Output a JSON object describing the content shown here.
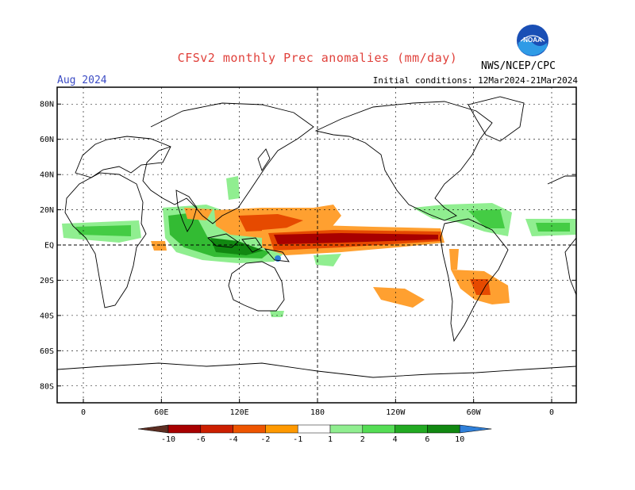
{
  "header": {
    "title": "CFSv2 monthly Prec anomalies (mm/day)",
    "valid_month": "Aug 2024",
    "initial_conditions": "Initial conditions: 12Mar2024-21Mar2024",
    "source": "NWS/NCEP/CPC",
    "logo_text": "NOAA"
  },
  "map": {
    "lat_labels": [
      "80N",
      "60N",
      "40N",
      "20N",
      "EQ",
      "20S",
      "40S",
      "60S",
      "80S"
    ],
    "lon_labels": [
      "0",
      "60E",
      "120E",
      "180",
      "120W",
      "60W",
      "0"
    ]
  },
  "colorbar": {
    "ticks": [
      "-10",
      "-6",
      "-4",
      "-2",
      "-1",
      "1",
      "2",
      "4",
      "6",
      "10"
    ],
    "colors": [
      "#5c2e22",
      "#a80000",
      "#cc1f00",
      "#ee5500",
      "#ff9900",
      "#ffffff",
      "#90ee90",
      "#55dd55",
      "#22aa22",
      "#118811",
      "#2f7fd8"
    ]
  },
  "colors": {
    "title": "#e0413b",
    "valid_month": "#3c4cc4",
    "orange": "#ffa030",
    "red_orange": "#e64a00",
    "dark_red": "#a80000",
    "light_green": "#90ee90",
    "green": "#33bb33",
    "dark_green": "#118811",
    "blue": "#2f7fd8"
  }
}
